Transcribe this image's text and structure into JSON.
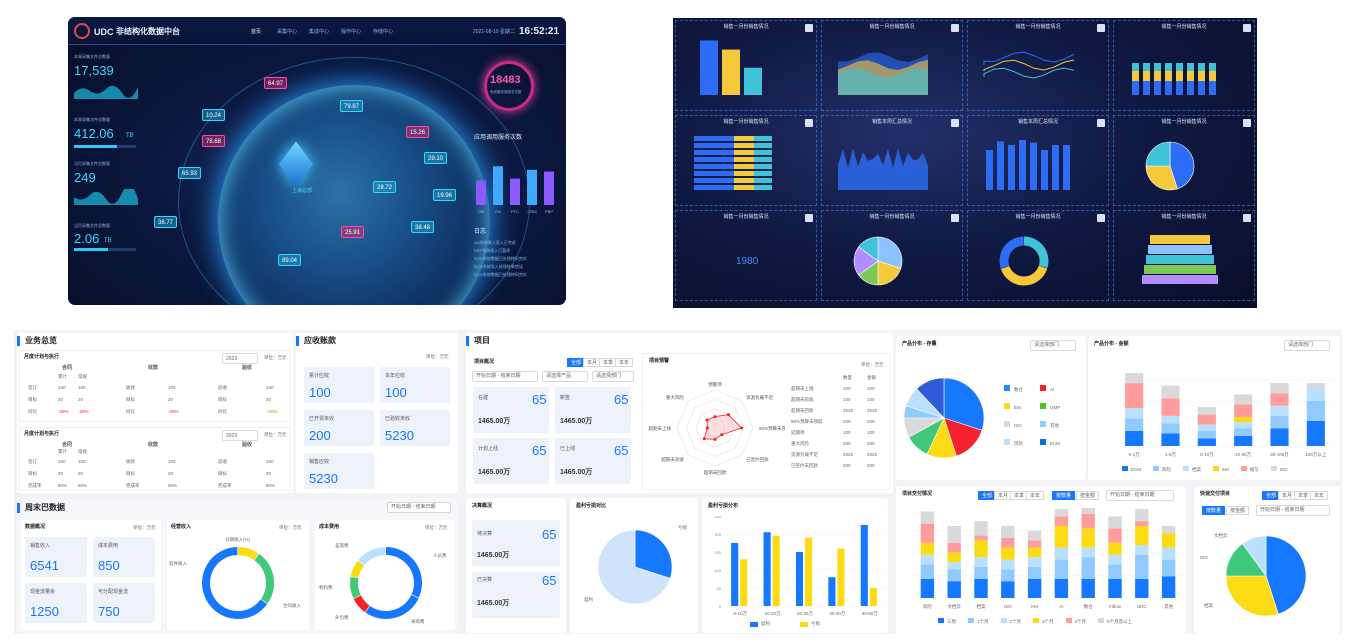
{
  "d1": {
    "logo": "UDC",
    "title": "非结构化数据中台",
    "nav": [
      "首页",
      "采集中心",
      "集成中心",
      "操作中心",
      "存储中心"
    ],
    "date": "2021-08-10 星期二",
    "time": "16:52:21",
    "stats": [
      {
        "label": "本周采集文件总数量",
        "value": "17,539",
        "unit": ""
      },
      {
        "label": "本周采集文件总数量",
        "value": "412.06",
        "unit": "TB"
      },
      {
        "label": "当月采集文件总数量",
        "value": "249",
        "unit": ""
      },
      {
        "label": "当月采集文件总数量",
        "value": "2.06",
        "unit": "TB"
      }
    ],
    "center_label": "上海总部",
    "counter": "18483",
    "counter_label": "系统服务调用总次数",
    "tags": [
      "64.97",
      "79.87",
      "10.24",
      "15.26",
      "78.68",
      "29.10",
      "65.93",
      "28.72",
      "19.96",
      "38.77",
      "25.91",
      "38.48",
      "89.04"
    ],
    "chart_title": "应用调用服务次数",
    "chart_cats": [
      "OIR",
      "OA",
      "PTC",
      "CRM",
      "PBP"
    ],
    "chart_values": [
      28,
      44,
      30,
      40,
      38
    ],
    "log_title": "日志",
    "logs": [
      "OA系统接入导入已完成",
      "ERP系统接入已暂停",
      "ECM系统数据已处理转码完毕",
      "ECM系统导入处理结果错误",
      "ECM系统数据已处理转码完毕"
    ]
  },
  "d2": {
    "cell_title": "销售一月份销售情况",
    "cells": [
      "销售一月份销售情况",
      "销售一月份销售情况",
      "销售一月份销售情况",
      "销售一月份销售情况",
      "销售一月份销售情况",
      "销售本周汇总情况",
      "销售本周汇总情况",
      "销售一月份销售情况",
      "销售一月份销售情况",
      "销售一月份销售情况",
      "销售一月份销售情况",
      "销售一月份销售情况"
    ],
    "year": "1980",
    "bar1": {
      "values": [
        120,
        100,
        60
      ]
    },
    "bar3": {
      "values": [
        80,
        97,
        90,
        100,
        95,
        80,
        90,
        90
      ]
    },
    "pie_labels": [
      "26.32%",
      "36.24%",
      "35.74%"
    ]
  },
  "ui": {
    "yw": {
      "title": "业务总览",
      "sub1": "月度计划与执行",
      "year": "2023",
      "unit": "单位：万元",
      "cols": [
        "合同",
        "收款",
        "验收"
      ],
      "subcols": [
        "累计",
        "常规"
      ],
      "rows": [
        [
          "签订",
          "100",
          "100",
          "收款",
          "100",
          "验收",
          "100"
        ],
        [
          "目标",
          "20",
          "20",
          "目标",
          "20",
          "目标",
          "20"
        ],
        [
          "同比",
          "-29%",
          "-29%",
          "同比",
          "-29%",
          "同比",
          "+10%"
        ]
      ],
      "sub2": "月度计划与执行",
      "rows2": [
        [
          "签订",
          "100",
          "100",
          "收款",
          "100",
          "验收",
          "100"
        ],
        [
          "目标",
          "20",
          "20",
          "目标",
          "20",
          "目标",
          "20"
        ],
        [
          "完成率",
          "50%",
          "50%",
          "完成率",
          "50%",
          "完成率",
          "50%"
        ]
      ]
    },
    "ys": {
      "title": "应收账款",
      "unit": "单位：万元",
      "items": [
        {
          "label": "累计应收",
          "value": "100"
        },
        {
          "label": "本年应收",
          "value": "100"
        },
        {
          "label": "已开票未收",
          "value": "200"
        },
        {
          "label": "已验收未收",
          "value": "5230"
        },
        {
          "label": "销售应收",
          "value": "5230"
        }
      ]
    },
    "xm": {
      "title": "项目",
      "sub": "项目概况",
      "tabs": [
        "全部",
        "本月",
        "本季",
        "本年"
      ],
      "filters": [
        "开始日期 - 结束日期",
        "请选择产品",
        "请选择部门"
      ],
      "items": [
        {
          "label": "在建",
          "value": "65",
          "amount": "1465.00万"
        },
        {
          "label": "新签",
          "value": "65",
          "amount": "1465.00万"
        },
        {
          "label": "计划上线",
          "value": "65",
          "amount": "1465.00万"
        },
        {
          "label": "已上线",
          "value": "65",
          "amount": "1465.00万"
        }
      ],
      "risk": "项目预警",
      "radar_labels": [
        "预警项",
        "资源负载不足",
        "90%预算未领取",
        "已签约回款",
        "超期未回款",
        "超期未验收",
        "超期未上线",
        "重大风险"
      ],
      "risk_cols": [
        "",
        "数量",
        "金额"
      ],
      "risk_rows": [
        [
          "超期未上线",
          "100",
          "100"
        ],
        [
          "超期未验收",
          "100",
          "100"
        ],
        [
          "超期未回款",
          "2525",
          "2525"
        ],
        [
          "90%预算未领取",
          "200",
          "200"
        ],
        [
          "延期项",
          "100",
          "100"
        ],
        [
          "重大风险",
          "200",
          "200"
        ],
        [
          "资源负载不足",
          "2525",
          "2525"
        ],
        [
          "已签约未回款",
          "200",
          "200"
        ]
      ]
    },
    "zz": {
      "title": "周末巴数据",
      "sub": "数据概况",
      "unit": "单位：万元",
      "date": "开始日期 - 结束日期",
      "items": [
        {
          "label": "销售收入",
          "value": "6541"
        },
        {
          "label": "成本费用",
          "value": "850"
        },
        {
          "label": "现金流量余",
          "value": "1250"
        },
        {
          "label": "可分配现金流",
          "value": "750"
        }
      ],
      "income": "经营收入",
      "cost": "成本费用",
      "legend1": [
        "分期收入(%)",
        "软件收入",
        "合同收入"
      ],
      "legend2": [
        "人员费",
        "差旅费",
        "物料费",
        "外包费",
        "采购费"
      ]
    },
    "js": {
      "title": "决算概况",
      "items": [
        {
          "label": "待决算",
          "value": "65",
          "amount": "1465.00万"
        },
        {
          "label": "已决算",
          "value": "65",
          "amount": "1465.00万"
        }
      ],
      "cmp": "盈利亏损对比",
      "pie": [
        "亏损",
        "盈利"
      ],
      "dist": "盈利亏损分布",
      "cats": [
        "0-10万",
        "10-20万",
        "20-30万",
        "30-40万",
        "40-50万"
      ],
      "profit": [
        175,
        205,
        150,
        80,
        225
      ],
      "loss": [
        130,
        195,
        190,
        160,
        50
      ],
      "legend": [
        "盈利",
        "亏损"
      ]
    },
    "cp": {
      "title": "产品分布 - 存量",
      "select": "请选择部门",
      "legend": [
        "数仓",
        "AI",
        "EM",
        "GMP",
        "ISO",
        "其他",
        "风险",
        "ECM"
      ],
      "slices": [
        30,
        15,
        12,
        10,
        8,
        5,
        8,
        12
      ],
      "title2": "产品分布 - 金额",
      "cats": [
        "0-1万",
        "1-5万",
        "5-10万",
        "10-30万",
        "30-100万",
        "100万以上"
      ],
      "legend2": [
        "ECM",
        "风险",
        "档案",
        "KM",
        "规写",
        "ISO"
      ]
    },
    "xmj": {
      "title": "项目交付情况",
      "tabs": [
        "全部",
        "本月",
        "本季",
        "本年"
      ],
      "tabs2": [
        "按数量",
        "按金额"
      ],
      "date": "开始日期 - 结束日期",
      "cats": [
        "风险",
        "文档云",
        "档案",
        "ISO",
        "KM",
        "AI",
        "数仓",
        "Infinix",
        "UDC",
        "其他"
      ],
      "legend": [
        "三周",
        "1个月",
        "2个月",
        "3个月",
        "4个月",
        "5个月及以上"
      ]
    },
    "kd": {
      "title": "快速交付项目",
      "tabs": [
        "全部",
        "本月",
        "本季",
        "本年"
      ],
      "tabs2": [
        "按数量",
        "按金额"
      ],
      "date": "开始日期 - 结束日期",
      "labels": [
        "文档云",
        "ISO",
        "档案"
      ]
    }
  }
}
